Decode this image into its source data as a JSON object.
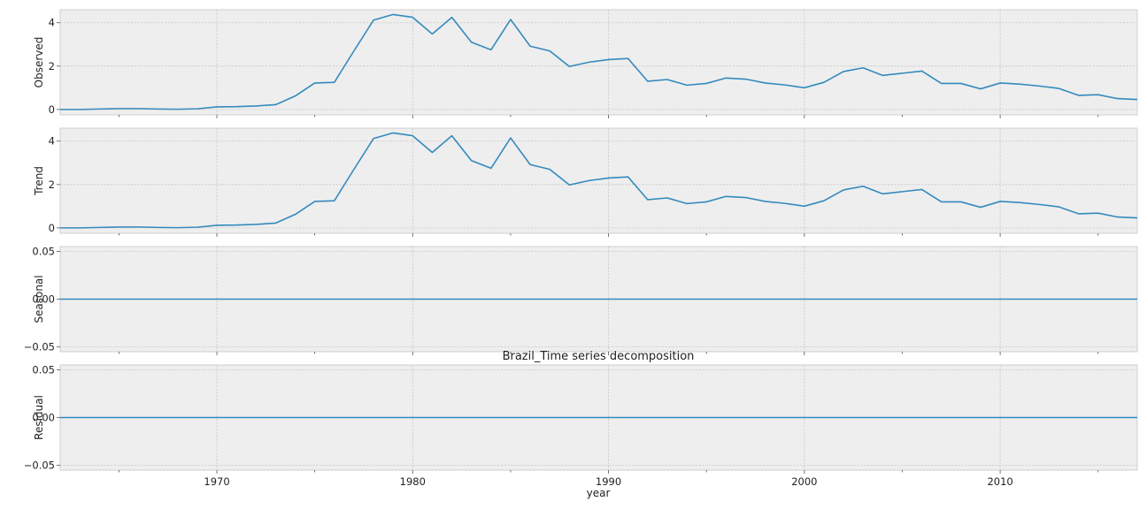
{
  "chart_data": {
    "type": "line",
    "title": "Brazil_Time series decomposition",
    "xlabel": "year",
    "xlim": [
      1962,
      2017
    ],
    "x_ticks": [
      1970,
      1980,
      1990,
      2000,
      2010
    ],
    "x_tick_labels": [
      "1970",
      "1980",
      "1990",
      "2000",
      "2010"
    ],
    "x_minor_ticks": [
      1965,
      1975,
      1985,
      1995,
      2005,
      2015
    ],
    "grid": true,
    "line_color": "#348abd",
    "years": [
      1962,
      1963,
      1964,
      1965,
      1966,
      1967,
      1968,
      1969,
      1970,
      1971,
      1972,
      1973,
      1974,
      1975,
      1976,
      1977,
      1978,
      1979,
      1980,
      1981,
      1982,
      1983,
      1984,
      1985,
      1986,
      1987,
      1988,
      1989,
      1990,
      1991,
      1992,
      1993,
      1994,
      1995,
      1996,
      1997,
      1998,
      1999,
      2000,
      2001,
      2002,
      2003,
      2004,
      2005,
      2006,
      2007,
      2008,
      2009,
      2010,
      2011,
      2012,
      2013,
      2014,
      2015,
      2016,
      2017
    ],
    "panels": [
      {
        "ylabel": "Observed",
        "ylim": [
          -0.25,
          4.6
        ],
        "y_ticks": [
          0,
          2,
          4
        ],
        "y_tick_labels": [
          "0",
          "2",
          "4"
        ],
        "values": [
          0.0,
          0.0,
          0.02,
          0.04,
          0.04,
          0.02,
          0.01,
          0.03,
          0.12,
          0.13,
          0.16,
          0.22,
          0.62,
          1.22,
          1.25,
          2.7,
          4.12,
          4.38,
          4.25,
          3.48,
          4.25,
          3.1,
          2.75,
          4.15,
          2.92,
          2.7,
          1.98,
          2.18,
          2.3,
          2.35,
          1.3,
          1.38,
          1.12,
          1.2,
          1.45,
          1.4,
          1.22,
          1.13,
          1.0,
          1.25,
          1.75,
          1.92,
          1.57,
          1.67,
          1.77,
          1.2,
          1.2,
          0.95,
          1.22,
          1.17,
          1.08,
          0.97,
          0.65,
          0.68,
          0.5,
          0.46
        ]
      },
      {
        "ylabel": "Trend",
        "ylim": [
          -0.25,
          4.6
        ],
        "y_ticks": [
          0,
          2,
          4
        ],
        "y_tick_labels": [
          "0",
          "2",
          "4"
        ],
        "values": [
          0.0,
          0.0,
          0.02,
          0.04,
          0.04,
          0.02,
          0.01,
          0.03,
          0.12,
          0.13,
          0.16,
          0.22,
          0.62,
          1.22,
          1.25,
          2.7,
          4.12,
          4.38,
          4.25,
          3.48,
          4.25,
          3.1,
          2.75,
          4.15,
          2.92,
          2.7,
          1.98,
          2.18,
          2.3,
          2.35,
          1.3,
          1.38,
          1.12,
          1.2,
          1.45,
          1.4,
          1.22,
          1.13,
          1.0,
          1.25,
          1.75,
          1.92,
          1.57,
          1.67,
          1.77,
          1.2,
          1.2,
          0.95,
          1.22,
          1.17,
          1.08,
          0.97,
          0.65,
          0.68,
          0.5,
          0.46
        ]
      },
      {
        "ylabel": "Seasonal",
        "ylim": [
          -0.055,
          0.055
        ],
        "y_ticks": [
          0.05,
          0.0,
          -0.05
        ],
        "y_tick_labels": [
          "0.05",
          "0.00",
          "−0.05"
        ],
        "values": [
          0,
          0,
          0,
          0,
          0,
          0,
          0,
          0,
          0,
          0,
          0,
          0,
          0,
          0,
          0,
          0,
          0,
          0,
          0,
          0,
          0,
          0,
          0,
          0,
          0,
          0,
          0,
          0,
          0,
          0,
          0,
          0,
          0,
          0,
          0,
          0,
          0,
          0,
          0,
          0,
          0,
          0,
          0,
          0,
          0,
          0,
          0,
          0,
          0,
          0,
          0,
          0,
          0,
          0,
          0,
          0
        ]
      },
      {
        "ylabel": "Residual",
        "ylim": [
          -0.055,
          0.055
        ],
        "y_ticks": [
          0.05,
          0.0,
          -0.05
        ],
        "y_tick_labels": [
          "0.05",
          "0.00",
          "−0.05"
        ],
        "values": [
          0,
          0,
          0,
          0,
          0,
          0,
          0,
          0,
          0,
          0,
          0,
          0,
          0,
          0,
          0,
          0,
          0,
          0,
          0,
          0,
          0,
          0,
          0,
          0,
          0,
          0,
          0,
          0,
          0,
          0,
          0,
          0,
          0,
          0,
          0,
          0,
          0,
          0,
          0,
          0,
          0,
          0,
          0,
          0,
          0,
          0,
          0,
          0,
          0,
          0,
          0,
          0,
          0,
          0,
          0,
          0
        ]
      }
    ]
  }
}
